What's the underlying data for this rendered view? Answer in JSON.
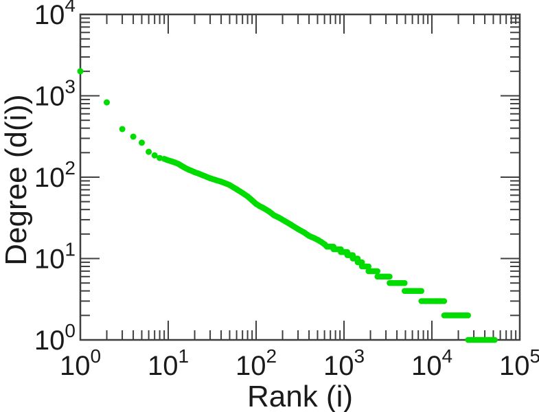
{
  "figure": {
    "background_color": "#ffffff",
    "frame_color": "#3f3f3f",
    "text_color": "#1a1a1a",
    "point_color": "#00DC00",
    "x_axis": {
      "title": "Rank (i)",
      "scale": "log",
      "tick_base": "10",
      "tick_exponents": [
        0,
        1,
        2,
        3,
        4,
        5
      ]
    },
    "y_axis": {
      "title": "Degree (d(i))",
      "scale": "log",
      "tick_base": "10",
      "tick_exponents": [
        0,
        1,
        2,
        3,
        4
      ]
    }
  },
  "chart_data": {
    "type": "scatter",
    "title": "",
    "xlabel": "Rank (i)",
    "ylabel": "Degree (d(i))",
    "xscale": "log",
    "yscale": "log",
    "xlim": [
      1,
      100000
    ],
    "ylim": [
      1,
      10000
    ],
    "grid": false,
    "legend": false,
    "series_name": "degree-vs-rank",
    "head_points": [
      [
        1,
        2000
      ],
      [
        2,
        830
      ],
      [
        3,
        390
      ],
      [
        4,
        315
      ],
      [
        5,
        265
      ],
      [
        6,
        205
      ],
      [
        7,
        185
      ],
      [
        8,
        172
      ]
    ],
    "curve_points": [
      [
        9,
        168
      ],
      [
        10,
        161
      ],
      [
        11,
        156
      ],
      [
        12,
        151
      ],
      [
        13,
        146
      ],
      [
        14,
        139
      ],
      [
        15,
        133
      ],
      [
        16,
        128
      ],
      [
        17,
        124
      ],
      [
        18,
        121
      ],
      [
        19,
        118
      ],
      [
        20,
        115
      ],
      [
        22,
        111
      ],
      [
        25,
        105
      ],
      [
        28,
        100
      ],
      [
        30,
        97
      ],
      [
        35,
        92
      ],
      [
        40,
        88
      ],
      [
        45,
        84
      ],
      [
        50,
        80
      ],
      [
        60,
        71
      ],
      [
        70,
        64
      ],
      [
        80,
        58
      ],
      [
        90,
        52
      ],
      [
        100,
        47
      ],
      [
        110,
        44
      ],
      [
        120,
        42
      ],
      [
        140,
        38
      ],
      [
        160,
        34
      ],
      [
        180,
        32
      ],
      [
        200,
        30
      ],
      [
        250,
        26
      ],
      [
        300,
        23
      ],
      [
        350,
        21
      ],
      [
        400,
        19
      ],
      [
        450,
        18
      ],
      [
        500,
        17
      ],
      [
        550,
        16
      ],
      [
        600,
        15
      ],
      [
        640,
        14
      ]
    ],
    "tail_plateaus": [
      {
        "degree": 14,
        "rank_start": 640,
        "rank_end": 760
      },
      {
        "degree": 13,
        "rank_start": 760,
        "rank_end": 920
      },
      {
        "degree": 12,
        "rank_start": 920,
        "rank_end": 1090
      },
      {
        "degree": 11,
        "rank_start": 1090,
        "rank_end": 1260
      },
      {
        "degree": 10,
        "rank_start": 1260,
        "rank_end": 1430
      },
      {
        "degree": 9,
        "rank_start": 1430,
        "rank_end": 1600
      },
      {
        "degree": 8,
        "rank_start": 1600,
        "rank_end": 1900
      },
      {
        "degree": 7,
        "rank_start": 1900,
        "rank_end": 2400
      },
      {
        "degree": 6,
        "rank_start": 2400,
        "rank_end": 3300
      },
      {
        "degree": 5,
        "rank_start": 3300,
        "rank_end": 4900
      },
      {
        "degree": 4,
        "rank_start": 4900,
        "rank_end": 7600
      },
      {
        "degree": 3,
        "rank_start": 7600,
        "rank_end": 13800
      },
      {
        "degree": 2,
        "rank_start": 13800,
        "rank_end": 25800
      },
      {
        "degree": 1,
        "rank_start": 25800,
        "rank_end": 52000
      }
    ]
  }
}
